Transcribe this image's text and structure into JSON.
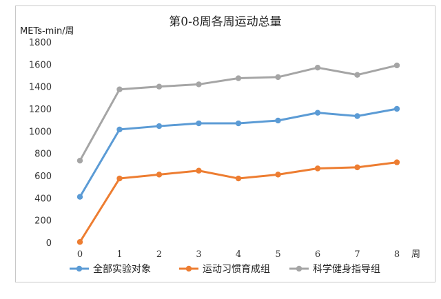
{
  "chart_data": {
    "type": "line",
    "title": "第0-8周各周运动总量",
    "ylabel": "METs-min/周",
    "xlabel": "周",
    "ylim": [
      0,
      1800
    ],
    "yticks": [
      0,
      200,
      400,
      600,
      800,
      1000,
      1200,
      1400,
      1600,
      1800
    ],
    "categories": [
      "0",
      "1",
      "2",
      "3",
      "4",
      "5",
      "6",
      "7",
      "8"
    ],
    "grid": false,
    "legend_position": "bottom",
    "series": [
      {
        "name": "全部实验对象",
        "color": "#5b9bd5",
        "values": [
          410,
          1015,
          1045,
          1070,
          1070,
          1095,
          1165,
          1135,
          1200
        ]
      },
      {
        "name": "运动习惯育成组",
        "color": "#ed7d31",
        "values": [
          5,
          575,
          610,
          645,
          575,
          610,
          665,
          675,
          720
        ]
      },
      {
        "name": "科学健身指导组",
        "color": "#a5a5a5",
        "values": [
          735,
          1375,
          1400,
          1420,
          1475,
          1485,
          1570,
          1505,
          1590
        ]
      }
    ]
  }
}
